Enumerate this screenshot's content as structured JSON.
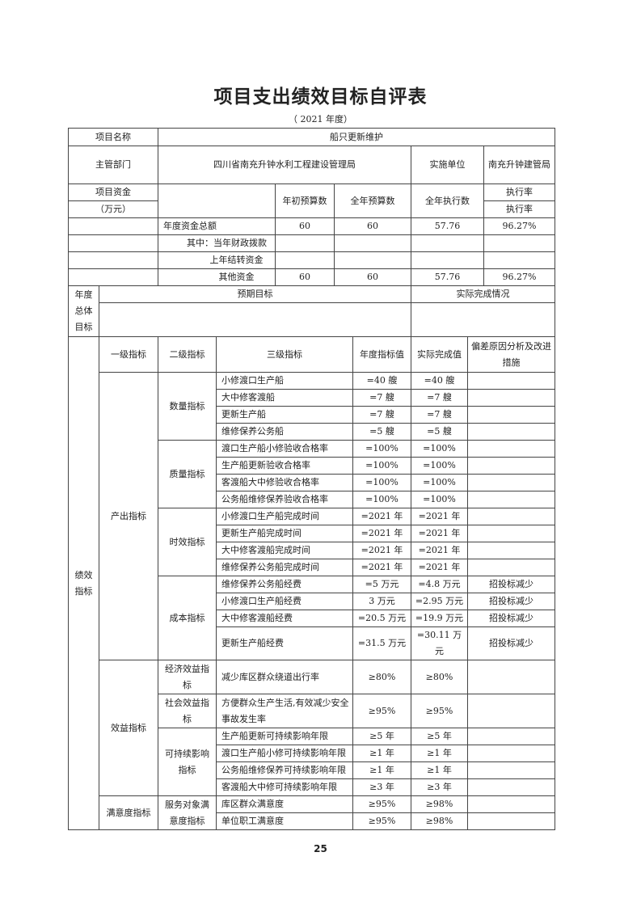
{
  "title": "项目支出绩效目标自评表",
  "year_label": "（  2021 年度）",
  "project": {
    "name_label": "项目名称",
    "name": "船只更新维护",
    "dept_label": "主管部门",
    "dept": "四川省南充升钟水利工程建设管理局",
    "unit_label": "实施单位",
    "unit": "南充升钟建管局",
    "funds_label": "项目资金",
    "funds_unit": "（万元）",
    "col_initial": "年初预算数",
    "col_annual": "全年预算数",
    "col_executed": "全年执行数",
    "col_rate": "执行率",
    "col_rate2": "执行率"
  },
  "funds": [
    {
      "label": "年度资金总额",
      "initial": "60",
      "annual": "60",
      "executed": "57.76",
      "rate": "96.27%"
    },
    {
      "label": "其中：当年财政拨款",
      "initial": "",
      "annual": "",
      "executed": "",
      "rate": ""
    },
    {
      "label": "上年结转资金",
      "initial": "",
      "annual": "",
      "executed": "",
      "rate": ""
    },
    {
      "label": "其他资金",
      "initial": "60",
      "annual": "60",
      "executed": "57.76",
      "rate": "96.27%"
    }
  ],
  "overall": {
    "label": "年度总体目标",
    "expected_label": "预期目标",
    "actual_label": "实际完成情况",
    "expected": "",
    "actual": ""
  },
  "indicators": {
    "section_label": "绩效指标",
    "headers": {
      "level1": "一级指标",
      "level2": "二级指标",
      "level3": "三级指标",
      "target": "年度指标值",
      "actual": "实际完成值",
      "note": "偏差原因分析及改进措施"
    },
    "groups": [
      {
        "level1": "产出指标",
        "subs": [
          {
            "level2": "数量指标",
            "rows": [
              {
                "name": "小修渡口生产船",
                "target": "=40 艘",
                "actual": "=40 艘",
                "note": ""
              },
              {
                "name": "大中修客渡船",
                "target": "=7 艘",
                "actual": "=7 艘",
                "note": ""
              },
              {
                "name": "更新生产船",
                "target": "=7 艘",
                "actual": "=7 艘",
                "note": ""
              },
              {
                "name": "维修保养公务船",
                "target": "=5 艘",
                "actual": "=5 艘",
                "note": ""
              }
            ]
          },
          {
            "level2": "质量指标",
            "rows": [
              {
                "name": "渡口生产船小修验收合格率",
                "target": "=100%",
                "actual": "=100%",
                "note": ""
              },
              {
                "name": "生产船更新验收合格率",
                "target": "=100%",
                "actual": "=100%",
                "note": ""
              },
              {
                "name": "客渡船大中修验收合格率",
                "target": "=100%",
                "actual": "=100%",
                "note": ""
              },
              {
                "name": "公务船维修保养验收合格率",
                "target": "=100%",
                "actual": "=100%",
                "note": ""
              }
            ]
          },
          {
            "level2": "时效指标",
            "rows": [
              {
                "name": "小修渡口生产船完成时间",
                "target": "=2021 年",
                "actual": "=2021 年",
                "note": ""
              },
              {
                "name": "更新生产船完成时间",
                "target": "=2021 年",
                "actual": "=2021 年",
                "note": ""
              },
              {
                "name": "大中修客渡船完成时间",
                "target": "=2021 年",
                "actual": "=2021 年",
                "note": ""
              },
              {
                "name": "维修保养公务船完成时间",
                "target": "=2021 年",
                "actual": "=2021 年",
                "note": ""
              }
            ]
          },
          {
            "level2": "成本指标",
            "rows": [
              {
                "name": "维修保养公务船经费",
                "target": "=5 万元",
                "actual": "=4.8 万元",
                "note": "招投标减少"
              },
              {
                "name": "小修渡口生产船经费",
                "target": "3 万元",
                "actual": "=2.95 万元",
                "note": "招投标减少"
              },
              {
                "name": "大中修客渡船经费",
                "target": "=20.5 万元",
                "actual": "=19.9 万元",
                "note": "招投标减少"
              },
              {
                "name": "更新生产船经费",
                "target": "=31.5 万元",
                "actual": "=30.11 万元",
                "note": "招投标减少"
              }
            ]
          }
        ]
      },
      {
        "level1": "效益指标",
        "subs": [
          {
            "level2": "经济效益指标",
            "tall": true,
            "rows": [
              {
                "name": "减少库区群众绕道出行率",
                "target": "≥80%",
                "actual": "≥80%",
                "note": ""
              }
            ]
          },
          {
            "level2": "社会效益指标",
            "tall": true,
            "rows": [
              {
                "name": "方便群众生产生活,有效减少安全事故发生率",
                "target": "≥95%",
                "actual": "≥95%",
                "note": ""
              }
            ]
          },
          {
            "level2": "可持续影响指标",
            "rows": [
              {
                "name": "生产船更新可持续影响年限",
                "target": "≥5 年",
                "actual": "≥5 年",
                "note": ""
              },
              {
                "name": "渡口生产船小修可持续影响年限",
                "target": "≥1 年",
                "actual": "≥1 年",
                "note": ""
              },
              {
                "name": "公务船维修保养可持续影响年限",
                "target": "≥1 年",
                "actual": "≥1 年",
                "note": ""
              },
              {
                "name": "客渡船大中修可持续影响年限",
                "target": "≥3 年",
                "actual": "≥3 年",
                "note": ""
              }
            ]
          }
        ]
      },
      {
        "level1": "满意度指标",
        "subs": [
          {
            "level2": "服务对象满意度指标",
            "rows": [
              {
                "name": "库区群众满意度",
                "target": "≥95%",
                "actual": "≥98%",
                "note": ""
              },
              {
                "name": "单位职工满意度",
                "target": "≥95%",
                "actual": "≥98%",
                "note": ""
              }
            ]
          }
        ]
      }
    ]
  },
  "page_number": "25"
}
